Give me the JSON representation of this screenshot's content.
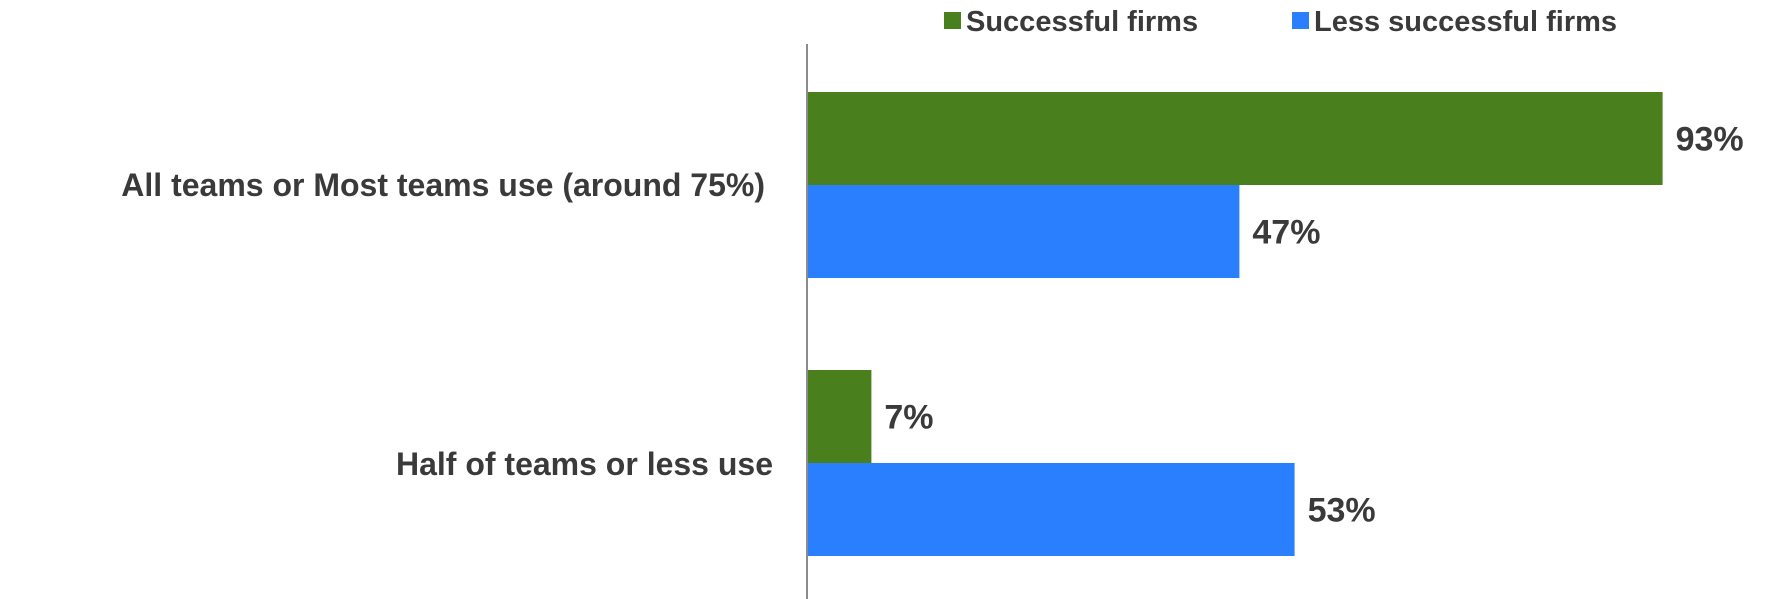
{
  "chart_data": {
    "type": "bar",
    "orientation": "horizontal",
    "categories": [
      "All teams or Most teams use (around 75%)",
      "Half of teams or less use"
    ],
    "series": [
      {
        "name": "Successful firms",
        "color": "#4a7f1d",
        "values": [
          93,
          7
        ],
        "labels": [
          "93%",
          "7%"
        ]
      },
      {
        "name": "Less successful firms",
        "color": "#2a7fff",
        "values": [
          47,
          53
        ],
        "labels": [
          "47%",
          "53%"
        ]
      }
    ],
    "xlim": [
      0,
      100
    ],
    "grid": false,
    "legend_position": "top-right"
  }
}
